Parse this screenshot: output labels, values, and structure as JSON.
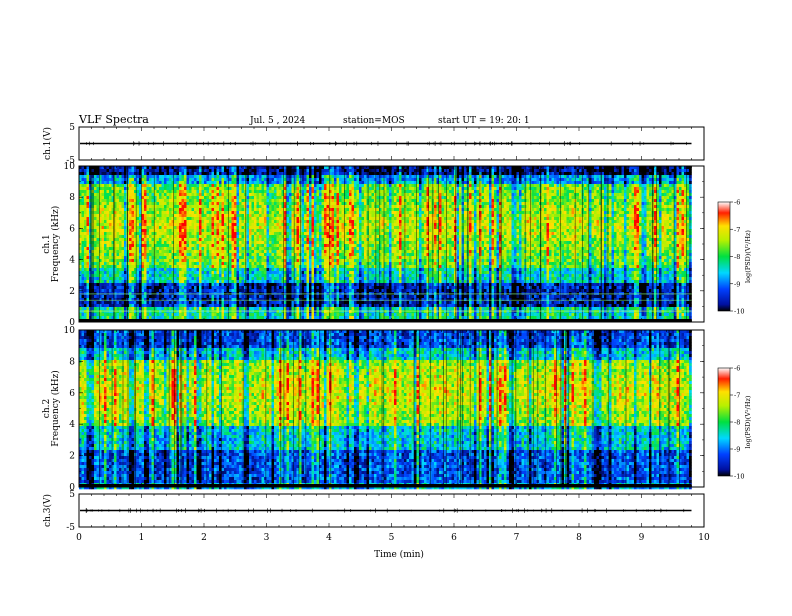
{
  "header": {
    "title": "VLF Spectra",
    "date": "Jul. 5 , 2024",
    "station": "station=MOS",
    "start": "start UT = 19: 20: 1"
  },
  "chart_data": {
    "type": "heatmap",
    "title": "VLF Spectra",
    "xlabel": "Time (min)",
    "xlim": [
      0,
      10
    ],
    "x_ticks": [
      0,
      1,
      2,
      3,
      4,
      5,
      6,
      7,
      8,
      9,
      10
    ],
    "data_end_min": 9.8,
    "panels": [
      {
        "id": "ch1-waveform",
        "type": "line",
        "ylabel": "ch.1(V)",
        "ylim": [
          -5,
          5
        ],
        "y_ticks": [
          5,
          -5
        ],
        "level": 0
      },
      {
        "id": "ch1-spectrogram",
        "type": "heatmap",
        "ylabel_top": "ch.1",
        "ylabel": "Frequency (kHz)",
        "ylim": [
          0,
          10
        ],
        "y_ticks": [
          0,
          2,
          4,
          6,
          8,
          10
        ],
        "colorbar": {
          "label": "log(PSD)(V²/Hz)",
          "range": [
            -10,
            -6
          ],
          "ticks": [
            -6,
            -7,
            -8,
            -9,
            -10
          ]
        }
      },
      {
        "id": "ch2-spectrogram",
        "type": "heatmap",
        "ylabel_top": "ch.2",
        "ylabel": "Frequency (kHz)",
        "ylim": [
          0,
          10
        ],
        "y_ticks": [
          0,
          2,
          4,
          6,
          8,
          10
        ],
        "colorbar": {
          "label": "log(PSD)(V²/Hz)",
          "range": [
            -10,
            -6
          ],
          "ticks": [
            -6,
            -7,
            -8,
            -9,
            -10
          ]
        }
      },
      {
        "id": "ch3-waveform",
        "type": "line",
        "ylabel": "ch.3(V)",
        "ylim": [
          -5,
          5
        ],
        "y_ticks": [
          5,
          -5
        ],
        "level": 0
      }
    ]
  }
}
